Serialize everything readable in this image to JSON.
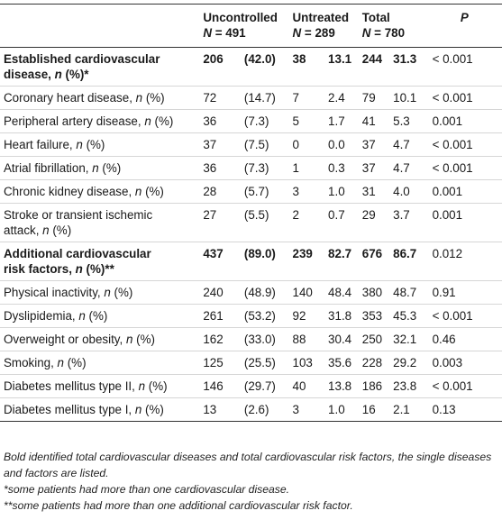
{
  "header": {
    "uncontrolled": "Uncontrolled",
    "uncontrolled_n": "N = 491",
    "untreated": "Untreated",
    "untreated_n": "N = 289",
    "total": "Total",
    "total_n": "N = 780",
    "p": "P"
  },
  "rows": [
    {
      "label": "Established cardiovascular disease, n (%)*",
      "u1": "206",
      "u2": "(42.0)",
      "t1": "38",
      "t2": "13.1",
      "o1": "244",
      "o2": "31.3",
      "p": "< 0.001"
    },
    {
      "label": "Coronary heart disease, n (%)",
      "u1": "72",
      "u2": "(14.7)",
      "t1": "7",
      "t2": "2.4",
      "o1": "79",
      "o2": "10.1",
      "p": "< 0.001"
    },
    {
      "label": "Peripheral artery disease, n (%)",
      "u1": "36",
      "u2": "(7.3)",
      "t1": "5",
      "t2": "1.7",
      "o1": "41",
      "o2": "5.3",
      "p": "0.001"
    },
    {
      "label": "Heart failure, n (%)",
      "u1": "37",
      "u2": "(7.5)",
      "t1": "0",
      "t2": "0.0",
      "o1": "37",
      "o2": "4.7",
      "p": "< 0.001"
    },
    {
      "label": "Atrial fibrillation, n (%)",
      "u1": "36",
      "u2": "(7.3)",
      "t1": "1",
      "t2": "0.3",
      "o1": "37",
      "o2": "4.7",
      "p": "< 0.001"
    },
    {
      "label": "Chronic kidney disease, n (%)",
      "u1": "28",
      "u2": "(5.7)",
      "t1": "3",
      "t2": "1.0",
      "o1": "31",
      "o2": "4.0",
      "p": "0.001"
    },
    {
      "label": "Stroke or transient ischemic attack, n (%)",
      "u1": "27",
      "u2": "(5.5)",
      "t1": "2",
      "t2": "0.7",
      "o1": "29",
      "o2": "3.7",
      "p": "0.001"
    },
    {
      "label": "Additional cardiovascular risk factors, n (%)**",
      "u1": "437",
      "u2": "(89.0)",
      "t1": "239",
      "t2": "82.7",
      "o1": "676",
      "o2": "86.7",
      "p": "0.012"
    },
    {
      "label": "Physical inactivity, n (%)",
      "u1": "240",
      "u2": "(48.9)",
      "t1": "140",
      "t2": "48.4",
      "o1": "380",
      "o2": "48.7",
      "p": "0.91"
    },
    {
      "label": "Dyslipidemia, n (%)",
      "u1": "261",
      "u2": "(53.2)",
      "t1": "92",
      "t2": "31.8",
      "o1": "353",
      "o2": "45.3",
      "p": "< 0.001"
    },
    {
      "label": "Overweight or obesity, n (%)",
      "u1": "162",
      "u2": "(33.0)",
      "t1": "88",
      "t2": "30.4",
      "o1": "250",
      "o2": "32.1",
      "p": "0.46"
    },
    {
      "label": "Smoking, n (%)",
      "u1": "125",
      "u2": "(25.5)",
      "t1": "103",
      "t2": "35.6",
      "o1": "228",
      "o2": "29.2",
      "p": "0.003"
    },
    {
      "label": "Diabetes mellitus type II, n (%)",
      "u1": "146",
      "u2": "(29.7)",
      "t1": "40",
      "t2": "13.8",
      "o1": "186",
      "o2": "23.8",
      "p": "< 0.001"
    },
    {
      "label": "Diabetes mellitus type I, n (%)",
      "u1": "13",
      "u2": "(2.6)",
      "t1": "3",
      "t2": "1.0",
      "o1": "16",
      "o2": "2.1",
      "p": "0.13"
    }
  ],
  "notes": {
    "bold_note": "Bold identified total cardiovascular diseases and total cardiovascular risk factors, the single diseases and factors are listed.",
    "star1": "*some patients had more than one cardiovascular disease.",
    "star2": "**some patients had more than one additional cardiovascular risk factor."
  }
}
